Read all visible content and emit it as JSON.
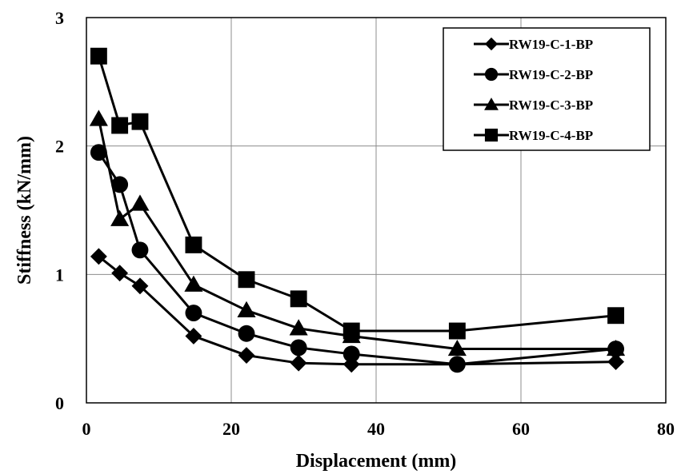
{
  "chart_data": {
    "type": "line",
    "xlabel": "Displacement (mm)",
    "ylabel": "Stiffness (kN/mm)",
    "xlim": [
      0,
      80
    ],
    "ylim": [
      0,
      3
    ],
    "xticks": [
      0,
      20,
      40,
      60,
      80
    ],
    "yticks": [
      0,
      1,
      2,
      3
    ],
    "grid": true,
    "legend_position": "top-right",
    "series": [
      {
        "name": "RW19-C-1-BP",
        "marker": "diamond",
        "x": [
          1.7,
          4.6,
          7.4,
          14.8,
          22.1,
          29.3,
          36.6,
          51.2,
          73.1
        ],
        "y": [
          1.14,
          1.01,
          0.91,
          0.52,
          0.37,
          0.31,
          0.3,
          0.3,
          0.32
        ]
      },
      {
        "name": "RW19-C-2-BP",
        "marker": "circle",
        "x": [
          1.7,
          4.6,
          7.4,
          14.8,
          22.1,
          29.3,
          36.6,
          51.2,
          73.1
        ],
        "y": [
          1.95,
          1.7,
          1.19,
          0.7,
          0.54,
          0.43,
          0.38,
          0.3,
          0.42
        ]
      },
      {
        "name": "RW19-C-3-BP",
        "marker": "triangle",
        "x": [
          1.7,
          4.6,
          7.4,
          14.8,
          22.1,
          29.3,
          36.6,
          51.2,
          73.1
        ],
        "y": [
          2.21,
          1.43,
          1.55,
          0.92,
          0.72,
          0.58,
          0.52,
          0.42,
          0.42
        ]
      },
      {
        "name": "RW19-C-4-BP",
        "marker": "square",
        "x": [
          1.7,
          4.6,
          7.4,
          14.8,
          22.1,
          29.3,
          36.6,
          51.2,
          73.1
        ],
        "y": [
          2.7,
          2.16,
          2.19,
          1.23,
          0.96,
          0.81,
          0.56,
          0.56,
          0.68
        ]
      }
    ]
  }
}
